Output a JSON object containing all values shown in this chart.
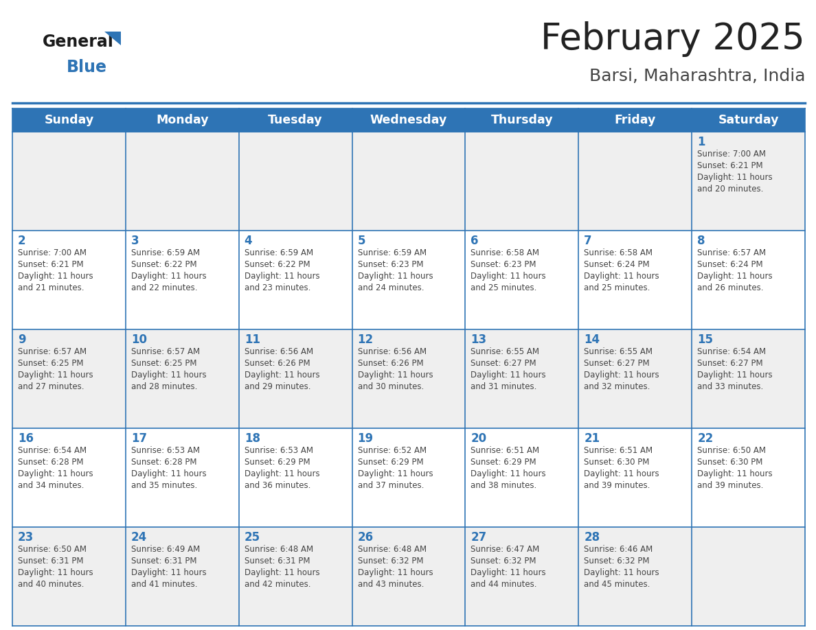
{
  "title": "February 2025",
  "subtitle": "Barsi, Maharashtra, India",
  "header_bg": "#2E74B5",
  "header_text_color": "#FFFFFF",
  "day_names": [
    "Sunday",
    "Monday",
    "Tuesday",
    "Wednesday",
    "Thursday",
    "Friday",
    "Saturday"
  ],
  "cell_border_color": "#2E74B5",
  "alt_row_bg": "#EFEFEF",
  "white_bg": "#FFFFFF",
  "title_color": "#222222",
  "subtitle_color": "#444444",
  "day_num_color": "#2E74B5",
  "info_text_color": "#444444",
  "calendar": [
    [
      {
        "day": null,
        "sunrise": null,
        "sunset": null,
        "daylight": null
      },
      {
        "day": null,
        "sunrise": null,
        "sunset": null,
        "daylight": null
      },
      {
        "day": null,
        "sunrise": null,
        "sunset": null,
        "daylight": null
      },
      {
        "day": null,
        "sunrise": null,
        "sunset": null,
        "daylight": null
      },
      {
        "day": null,
        "sunrise": null,
        "sunset": null,
        "daylight": null
      },
      {
        "day": null,
        "sunrise": null,
        "sunset": null,
        "daylight": null
      },
      {
        "day": 1,
        "sunrise": "7:00 AM",
        "sunset": "6:21 PM",
        "daylight": "11 hours and 20 minutes."
      }
    ],
    [
      {
        "day": 2,
        "sunrise": "7:00 AM",
        "sunset": "6:21 PM",
        "daylight": "11 hours and 21 minutes."
      },
      {
        "day": 3,
        "sunrise": "6:59 AM",
        "sunset": "6:22 PM",
        "daylight": "11 hours and 22 minutes."
      },
      {
        "day": 4,
        "sunrise": "6:59 AM",
        "sunset": "6:22 PM",
        "daylight": "11 hours and 23 minutes."
      },
      {
        "day": 5,
        "sunrise": "6:59 AM",
        "sunset": "6:23 PM",
        "daylight": "11 hours and 24 minutes."
      },
      {
        "day": 6,
        "sunrise": "6:58 AM",
        "sunset": "6:23 PM",
        "daylight": "11 hours and 25 minutes."
      },
      {
        "day": 7,
        "sunrise": "6:58 AM",
        "sunset": "6:24 PM",
        "daylight": "11 hours and 25 minutes."
      },
      {
        "day": 8,
        "sunrise": "6:57 AM",
        "sunset": "6:24 PM",
        "daylight": "11 hours and 26 minutes."
      }
    ],
    [
      {
        "day": 9,
        "sunrise": "6:57 AM",
        "sunset": "6:25 PM",
        "daylight": "11 hours and 27 minutes."
      },
      {
        "day": 10,
        "sunrise": "6:57 AM",
        "sunset": "6:25 PM",
        "daylight": "11 hours and 28 minutes."
      },
      {
        "day": 11,
        "sunrise": "6:56 AM",
        "sunset": "6:26 PM",
        "daylight": "11 hours and 29 minutes."
      },
      {
        "day": 12,
        "sunrise": "6:56 AM",
        "sunset": "6:26 PM",
        "daylight": "11 hours and 30 minutes."
      },
      {
        "day": 13,
        "sunrise": "6:55 AM",
        "sunset": "6:27 PM",
        "daylight": "11 hours and 31 minutes."
      },
      {
        "day": 14,
        "sunrise": "6:55 AM",
        "sunset": "6:27 PM",
        "daylight": "11 hours and 32 minutes."
      },
      {
        "day": 15,
        "sunrise": "6:54 AM",
        "sunset": "6:27 PM",
        "daylight": "11 hours and 33 minutes."
      }
    ],
    [
      {
        "day": 16,
        "sunrise": "6:54 AM",
        "sunset": "6:28 PM",
        "daylight": "11 hours and 34 minutes."
      },
      {
        "day": 17,
        "sunrise": "6:53 AM",
        "sunset": "6:28 PM",
        "daylight": "11 hours and 35 minutes."
      },
      {
        "day": 18,
        "sunrise": "6:53 AM",
        "sunset": "6:29 PM",
        "daylight": "11 hours and 36 minutes."
      },
      {
        "day": 19,
        "sunrise": "6:52 AM",
        "sunset": "6:29 PM",
        "daylight": "11 hours and 37 minutes."
      },
      {
        "day": 20,
        "sunrise": "6:51 AM",
        "sunset": "6:29 PM",
        "daylight": "11 hours and 38 minutes."
      },
      {
        "day": 21,
        "sunrise": "6:51 AM",
        "sunset": "6:30 PM",
        "daylight": "11 hours and 39 minutes."
      },
      {
        "day": 22,
        "sunrise": "6:50 AM",
        "sunset": "6:30 PM",
        "daylight": "11 hours and 39 minutes."
      }
    ],
    [
      {
        "day": 23,
        "sunrise": "6:50 AM",
        "sunset": "6:31 PM",
        "daylight": "11 hours and 40 minutes."
      },
      {
        "day": 24,
        "sunrise": "6:49 AM",
        "sunset": "6:31 PM",
        "daylight": "11 hours and 41 minutes."
      },
      {
        "day": 25,
        "sunrise": "6:48 AM",
        "sunset": "6:31 PM",
        "daylight": "11 hours and 42 minutes."
      },
      {
        "day": 26,
        "sunrise": "6:48 AM",
        "sunset": "6:32 PM",
        "daylight": "11 hours and 43 minutes."
      },
      {
        "day": 27,
        "sunrise": "6:47 AM",
        "sunset": "6:32 PM",
        "daylight": "11 hours and 44 minutes."
      },
      {
        "day": 28,
        "sunrise": "6:46 AM",
        "sunset": "6:32 PM",
        "daylight": "11 hours and 45 minutes."
      },
      {
        "day": null,
        "sunrise": null,
        "sunset": null,
        "daylight": null
      }
    ]
  ],
  "logo_general_color": "#1a1a1a",
  "logo_blue_color": "#2E74B5",
  "logo_triangle_color": "#2E74B5"
}
